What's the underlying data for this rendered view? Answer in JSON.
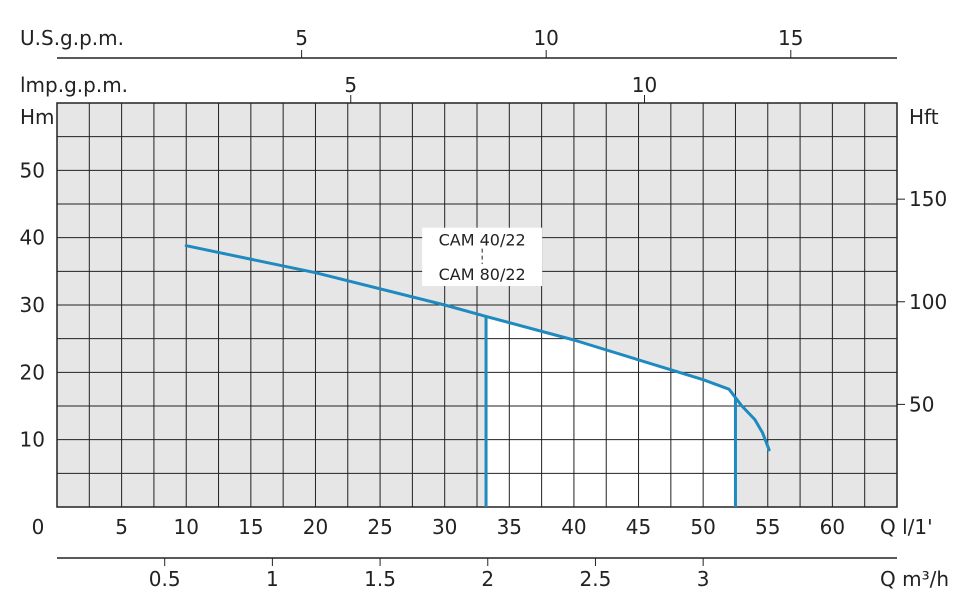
{
  "chart_data": {
    "type": "line",
    "title": "",
    "colors": {
      "curve": "#1f8ac0",
      "grid": "#222222",
      "operating_area": "#ffffff",
      "grid_area": "#e6e6e6"
    },
    "grid": true,
    "series": [
      {
        "name": "CAM 40/22",
        "x": [
          10,
          20,
          30,
          33.2,
          40,
          50,
          52,
          53,
          54,
          54.6,
          55.1
        ],
        "y": [
          38.8,
          34.8,
          30,
          28.3,
          24.8,
          18.9,
          17.5,
          15,
          13,
          11,
          8.5
        ]
      },
      {
        "name": "CAM 80/22",
        "x": [
          10,
          20,
          30,
          33.2,
          40,
          50,
          52,
          53,
          54,
          54.6,
          55.1
        ],
        "y": [
          38.8,
          34.8,
          30,
          28.3,
          24.8,
          18.9,
          17.5,
          15,
          13,
          11,
          8.5
        ]
      }
    ],
    "operating_range": {
      "q_min": 33.2,
      "q_max": 52.5
    },
    "x_axis": {
      "label": "Q l/1'",
      "range": [
        0,
        65
      ],
      "ticks": [
        0,
        5,
        10,
        15,
        20,
        25,
        30,
        35,
        40,
        45,
        50,
        55,
        60
      ],
      "tick_labels": [
        "0",
        "5",
        "10",
        "15",
        "20",
        "25",
        "30",
        "35",
        "40",
        "45",
        "50",
        "55",
        "60"
      ]
    },
    "y_axis_left": {
      "label": "Hm",
      "range": [
        0,
        60
      ],
      "ticks": [
        10,
        20,
        30,
        40,
        50
      ],
      "tick_labels": [
        "10",
        "20",
        "30",
        "40",
        "50"
      ]
    },
    "y_axis_right": {
      "label": "Hft",
      "ticks_ft": [
        50,
        100,
        150
      ],
      "tick_labels": [
        "50",
        "100",
        "150"
      ]
    },
    "axis_m3h": {
      "label": "Q m³/h",
      "ticks": [
        0.5,
        1,
        1.5,
        2,
        2.5,
        3
      ],
      "tick_labels": [
        "0.5",
        "1",
        "1.5",
        "2",
        "2.5",
        "3"
      ]
    },
    "axis_usgpm": {
      "label": "U.S.g.p.m.",
      "ticks": [
        5,
        10,
        15
      ],
      "tick_labels": [
        "5",
        "10",
        "15"
      ]
    },
    "axis_impgpm": {
      "label": "lmp.g.p.m.",
      "ticks": [
        5,
        10
      ],
      "tick_labels": [
        "5",
        "10"
      ]
    },
    "model_labels": [
      "CAM 40/22",
      "CAM 80/22"
    ]
  }
}
